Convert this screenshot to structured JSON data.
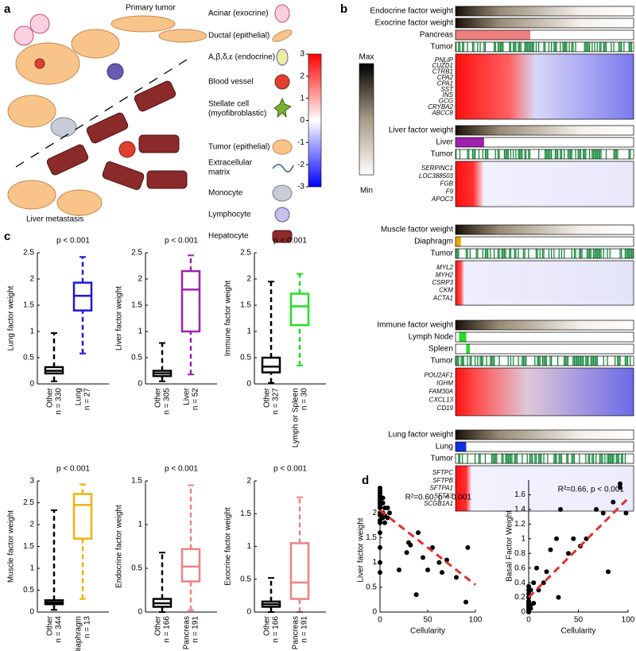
{
  "panel_labels": {
    "a": "a",
    "b": "b",
    "c": "c",
    "d": "d"
  },
  "panel_a": {
    "primary_tumor": "Primary tumor",
    "liver_metastasis": "Liver metastasis",
    "legend": [
      [
        "Acinar (exocrine)"
      ],
      [
        "Ductal (epithelial)"
      ],
      [
        "A,β,δ,ε (endocrine)"
      ],
      [
        "Blood vessel"
      ],
      [
        "Stellate cell",
        "(myofibroblastic)"
      ],
      [
        "Tumor (epithelial)"
      ],
      [
        "Extracellular",
        "matrix"
      ],
      [
        "Monocyte"
      ],
      [
        "Lymphocyte"
      ],
      [
        "Hepatocyte"
      ]
    ],
    "colorbar": {
      "ticks": [
        3,
        2,
        1,
        0,
        -1,
        -2,
        -3
      ],
      "max": "Max",
      "min": "Min"
    }
  },
  "panel_b": {
    "blocks": [
      {
        "rows": [
          {
            "label": "Endocrine factor weight",
            "fill": "gradient",
            "color": "#2a1c12"
          },
          {
            "label": "Exocrine factor weight",
            "fill": "gradient",
            "color": "#2a1c12"
          },
          {
            "label": "Pancreas",
            "fill": "solid",
            "color": "#f07f7f"
          },
          {
            "label": "Tumor",
            "fill": "stripes",
            "color": "#178a3c"
          }
        ],
        "genes": [
          "PNLIP",
          "CUZD1",
          "CTRB1",
          "CPA2",
          "CPA1",
          "SST",
          "INS",
          "GCG",
          "CRYBA2",
          "ABCC8"
        ]
      },
      {
        "rows": [
          {
            "label": "Liver factor weight",
            "fill": "gradient",
            "color": "#2a1c12"
          },
          {
            "label": "Liver",
            "fill": "solid",
            "color": "#a020b0"
          },
          {
            "label": "Tumor",
            "fill": "stripes",
            "color": "#178a3c"
          }
        ],
        "genes": [
          "SERPINC1",
          "LOC388503",
          "FGB",
          "F9",
          "APOC3"
        ]
      },
      {
        "rows": [
          {
            "label": "Muscle factor weight",
            "fill": "gradient",
            "color": "#2a1c12"
          },
          {
            "label": "Diaphragm",
            "fill": "solid",
            "color": "#f0a800"
          },
          {
            "label": "Tumor",
            "fill": "stripes",
            "color": "#178a3c"
          }
        ],
        "genes": [
          "MYL2",
          "MYH2",
          "CSRP3",
          "CKM",
          "ACTA1"
        ]
      },
      {
        "rows": [
          {
            "label": "Immune factor weight",
            "fill": "gradient",
            "color": "#2a1c12"
          },
          {
            "label": "Lymph Node",
            "fill": "solid",
            "color": "#22dd22"
          },
          {
            "label": "Spleen",
            "fill": "solid",
            "color": "#22dd22"
          },
          {
            "label": "Tumor",
            "fill": "stripes",
            "color": "#178a3c"
          }
        ],
        "genes": [
          "POU2AF1",
          "IGHM",
          "FAM30A",
          "CXCL13",
          "CD19"
        ]
      },
      {
        "rows": [
          {
            "label": "Lung factor weight",
            "fill": "gradient",
            "color": "#2a1c12"
          },
          {
            "label": "Lung",
            "fill": "solid",
            "color": "#1030e0"
          },
          {
            "label": "Tumor",
            "fill": "stripes",
            "color": "#178a3c"
          }
        ],
        "genes": [
          "SFTPC",
          "SFTPB",
          "SFTPA1",
          "SFTA3",
          "SCGB1A1"
        ]
      }
    ]
  },
  "chart_data": [
    {
      "type": "box",
      "title": "p < 0.001",
      "ylabel": "Lung factor weight",
      "ylim": [
        0,
        2.5
      ],
      "yticks": [
        0,
        0.5,
        1,
        1.5,
        2,
        2.5
      ],
      "categories": [
        {
          "name": "Other",
          "n": "n = 330"
        },
        {
          "name": "Lung",
          "n": "n = 27"
        }
      ],
      "boxes": [
        {
          "color": "#000000",
          "whislo": 0.05,
          "q1": 0.2,
          "median": 0.25,
          "q3": 0.32,
          "whishi": 0.97
        },
        {
          "color": "#1a1ad6",
          "whislo": 0.58,
          "q1": 1.4,
          "median": 1.68,
          "q3": 1.93,
          "whishi": 2.42
        }
      ]
    },
    {
      "type": "box",
      "title": "p < 0.001",
      "ylabel": "Liver factor weight",
      "ylim": [
        0,
        2.5
      ],
      "yticks": [
        0,
        0.5,
        1,
        1.5,
        2,
        2.5
      ],
      "categories": [
        {
          "name": "Other",
          "n": "n = 305"
        },
        {
          "name": "Liver",
          "n": "n = 52"
        }
      ],
      "boxes": [
        {
          "color": "#000000",
          "whislo": 0.05,
          "q1": 0.15,
          "median": 0.2,
          "q3": 0.25,
          "whishi": 0.78
        },
        {
          "color": "#a020b0",
          "whislo": 0.18,
          "q1": 1.0,
          "median": 1.8,
          "q3": 2.15,
          "whishi": 2.45
        }
      ]
    },
    {
      "type": "box",
      "title": "p < 0.001",
      "ylabel": "Immune factor weight",
      "ylim": [
        0,
        2.5
      ],
      "yticks": [
        0,
        0.5,
        1,
        1.5,
        2,
        2.5
      ],
      "categories": [
        {
          "name": "Other",
          "n": "n = 327"
        },
        {
          "name": "Lymph or Spleen",
          "n": "n = 30"
        }
      ],
      "boxes": [
        {
          "color": "#000000",
          "whislo": 0.02,
          "q1": 0.22,
          "median": 0.33,
          "q3": 0.5,
          "whishi": 1.95
        },
        {
          "color": "#22e022",
          "whislo": 0.35,
          "q1": 1.12,
          "median": 1.48,
          "q3": 1.72,
          "whishi": 2.1
        }
      ]
    },
    {
      "type": "box",
      "title": "p < 0.001",
      "ylabel": "Muscle factor weight",
      "ylim": [
        0,
        3
      ],
      "yticks": [
        0,
        0.5,
        1,
        1.5,
        2,
        2.5,
        3
      ],
      "categories": [
        {
          "name": "Other",
          "n": "n = 344"
        },
        {
          "name": "Diaphragm",
          "n": "n = 13"
        }
      ],
      "boxes": [
        {
          "color": "#000000",
          "whislo": 0.05,
          "q1": 0.18,
          "median": 0.22,
          "q3": 0.27,
          "whishi": 2.33
        },
        {
          "color": "#f0b010",
          "whislo": 0.3,
          "q1": 1.68,
          "median": 2.45,
          "q3": 2.7,
          "whishi": 2.92
        }
      ]
    },
    {
      "type": "box",
      "title": "p < 0.001",
      "ylabel": "Endocrine factor weight",
      "ylim": [
        0,
        1.5
      ],
      "yticks": [
        0,
        0.5,
        1,
        1.5
      ],
      "categories": [
        {
          "name": "Other",
          "n": "n = 166"
        },
        {
          "name": "Pancreas",
          "n": "n = 191"
        }
      ],
      "boxes": [
        {
          "color": "#000000",
          "whislo": 0,
          "q1": 0.06,
          "median": 0.1,
          "q3": 0.15,
          "whishi": 0.68
        },
        {
          "color": "#f08080",
          "whislo": 0.02,
          "q1": 0.35,
          "median": 0.52,
          "q3": 0.72,
          "whishi": 1.45
        }
      ]
    },
    {
      "type": "box",
      "title": "p < 0.001",
      "ylabel": "Exocrine factor weight",
      "ylim": [
        0,
        2
      ],
      "yticks": [
        0,
        0.5,
        1,
        1.5,
        2
      ],
      "categories": [
        {
          "name": "Other",
          "n": "n = 166"
        },
        {
          "name": "Pancreas",
          "n": "n = 191"
        }
      ],
      "boxes": [
        {
          "color": "#000000",
          "whislo": 0,
          "q1": 0.08,
          "median": 0.12,
          "q3": 0.16,
          "whishi": 0.52
        },
        {
          "color": "#f08080",
          "whislo": 0,
          "q1": 0.2,
          "median": 0.45,
          "q3": 1.05,
          "whishi": 1.75
        }
      ]
    },
    {
      "type": "scatter",
      "annotation": "R²=0.60, p < 0.001",
      "xlabel": "Cellularity",
      "ylabel": "Liver factor weight",
      "xlim": [
        0,
        100
      ],
      "xticks": [
        0,
        50,
        100
      ],
      "ylim": [
        0,
        2.5
      ],
      "yticks": [
        0,
        0.5,
        1,
        1.5,
        2
      ],
      "color": "#000000",
      "x": [
        0,
        0,
        0,
        0,
        0,
        0,
        0,
        0,
        0,
        0,
        0,
        0,
        0,
        0,
        0,
        0,
        0,
        3,
        3,
        3,
        3,
        5,
        5,
        5,
        8,
        8,
        10,
        20,
        28,
        30,
        32,
        38,
        40,
        45,
        50,
        55,
        62,
        65,
        70,
        80,
        90,
        92
      ],
      "y": [
        2.5,
        2.45,
        2.4,
        2.35,
        2.3,
        2.25,
        2.2,
        2.15,
        2.1,
        2.0,
        1.95,
        1.85,
        1.8,
        1.6,
        1.3,
        1.0,
        0.8,
        2.3,
        2.2,
        2.0,
        1.9,
        2.1,
        1.95,
        1.8,
        2.1,
        1.9,
        2.0,
        0.85,
        1.2,
        1.4,
        1.35,
        0.35,
        1.6,
        1.1,
        0.85,
        1.3,
        1.0,
        0.8,
        1.05,
        0.7,
        0.2,
        1.3
      ],
      "trend": {
        "color": "#e0302a",
        "x": [
          0,
          100
        ],
        "y": [
          2.05,
          0.55
        ]
      }
    },
    {
      "type": "scatter",
      "annotation": "R²=0.66, p < 0.001",
      "xlabel": "Cellularity",
      "ylabel": "Basal Factor Weight",
      "xlim": [
        0,
        100
      ],
      "xticks": [
        0,
        50,
        100
      ],
      "ylim": [
        0,
        1.8
      ],
      "yticks": [
        0,
        0.2,
        0.4,
        0.6,
        0.8,
        1,
        1.2,
        1.4,
        1.6
      ],
      "color": "#000000",
      "x": [
        0,
        0,
        0,
        0,
        0,
        0,
        0,
        0,
        0,
        0,
        0,
        2,
        2,
        2,
        5,
        5,
        8,
        10,
        15,
        18,
        22,
        28,
        30,
        32,
        40,
        45,
        52,
        58,
        68,
        75,
        80,
        85,
        92,
        92,
        98
      ],
      "y": [
        0,
        0.02,
        0.05,
        0.08,
        0.1,
        0.12,
        0.15,
        0.2,
        0.25,
        0.3,
        0.35,
        0.05,
        0.1,
        0.3,
        0.4,
        0.12,
        0.6,
        0.3,
        0.4,
        0.55,
        0.85,
        1.0,
        0.2,
        1.4,
        0.8,
        1.0,
        0.9,
        1.0,
        1.4,
        1.35,
        0.55,
        1.5,
        1.7,
        1.75,
        1.35
      ],
      "trend": {
        "color": "#e0302a",
        "x": [
          0,
          100
        ],
        "y": [
          0.2,
          1.55
        ]
      }
    }
  ]
}
